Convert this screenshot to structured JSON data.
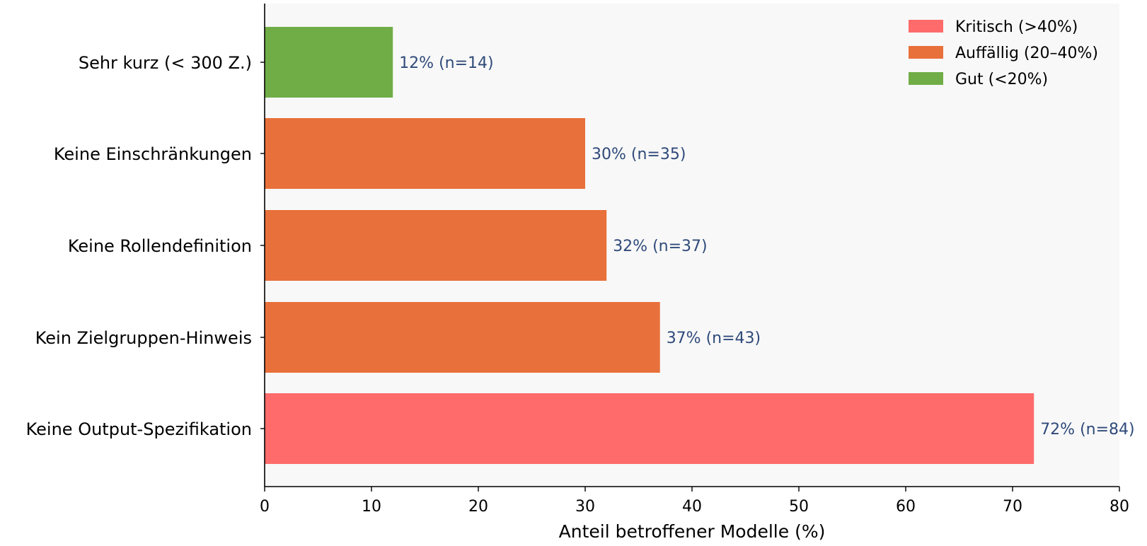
{
  "chart_data": {
    "type": "bar",
    "orientation": "horizontal",
    "categories": [
      "Sehr kurz (< 300 Z.)",
      "Keine Einschränkungen",
      "Keine Rollendefinition",
      "Kein Zielgruppen-Hinweis",
      "Keine Output-Spezifikation"
    ],
    "values": [
      12,
      30,
      32,
      37,
      72
    ],
    "bar_groups": [
      "good",
      "notable",
      "notable",
      "notable",
      "critical"
    ],
    "data_labels": [
      "12% (n=14)",
      "30% (n=35)",
      "32% (n=37)",
      "37% (n=43)",
      "72% (n=84)"
    ],
    "xlabel": "Anteil betroffener Modelle (%)",
    "ylabel": "",
    "xlim": [
      0,
      80
    ],
    "xticks": [
      0,
      10,
      20,
      30,
      40,
      50,
      60,
      70,
      80
    ],
    "grid": false,
    "legend": {
      "placement": "top-right",
      "entries": [
        {
          "key": "critical",
          "label": "Kritisch (>40%)",
          "color": "#ff6b6b"
        },
        {
          "key": "notable",
          "label": "Auffällig (20–40%)",
          "color": "#e8703a"
        },
        {
          "key": "good",
          "label": "Gut (<20%)",
          "color": "#70ad47"
        }
      ]
    },
    "colors": {
      "plot_background": "#f8f8f8",
      "data_label_text": "#2f4a7a"
    }
  }
}
